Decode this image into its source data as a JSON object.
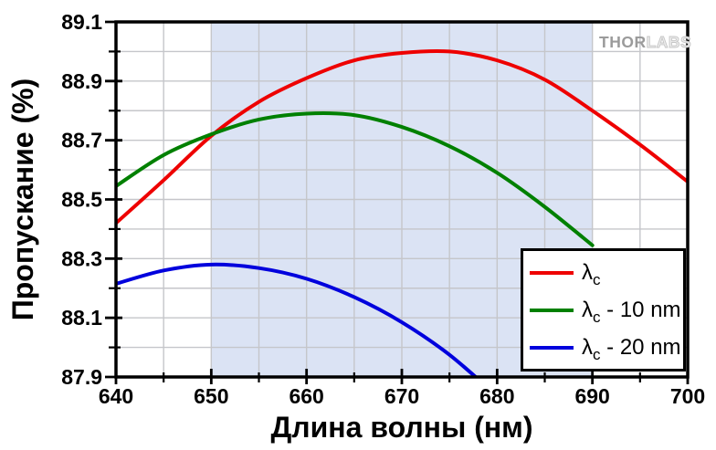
{
  "chart_data": {
    "type": "line",
    "title": "",
    "xlabel": "Длина волны (нм)",
    "ylabel": "Пропускание (%)",
    "xlim": [
      640,
      700
    ],
    "ylim": [
      87.9,
      89.1
    ],
    "x_major_ticks": [
      640,
      650,
      660,
      670,
      680,
      690,
      700
    ],
    "x_minor_ticks": [
      645,
      655,
      665,
      675,
      685,
      695
    ],
    "y_major_ticks": [
      87.9,
      88.1,
      88.3,
      88.5,
      88.7,
      88.9,
      89.1
    ],
    "y_minor_ticks": [
      88.0,
      88.2,
      88.4,
      88.6,
      88.8,
      89.0
    ],
    "grid": {
      "show": true,
      "x_step": 5,
      "y_step": 0.1,
      "color": "#c5c6ca"
    },
    "shaded_band": {
      "x_start": 650,
      "x_end": 690,
      "color": "#dbe3f4"
    },
    "legend_position": "bottom-right",
    "frame_color": "#000000",
    "x": [
      640,
      645,
      650,
      655,
      660,
      665,
      670,
      675,
      680,
      685,
      690,
      695,
      700
    ],
    "series": [
      {
        "name": "λc",
        "color": "#ee0000",
        "values": [
          88.42,
          88.565,
          88.715,
          88.83,
          88.91,
          88.97,
          88.995,
          89.0,
          88.97,
          88.905,
          88.8,
          88.685,
          88.56
        ]
      },
      {
        "name": "λc - 10 nm",
        "color": "#008000",
        "values": [
          88.545,
          88.65,
          88.72,
          88.77,
          88.79,
          88.785,
          88.745,
          88.68,
          88.59,
          88.475,
          88.345,
          null,
          null
        ]
      },
      {
        "name": "λc - 20 nm",
        "color": "#0000dd",
        "values": [
          88.215,
          88.26,
          88.28,
          88.268,
          88.232,
          88.17,
          88.085,
          87.975,
          87.835,
          null,
          null,
          null,
          null
        ]
      }
    ]
  },
  "legend": {
    "entries": [
      {
        "symbol": "λ",
        "sub": "c",
        "suffix": ""
      },
      {
        "symbol": "λ",
        "sub": "c",
        "suffix": " - 10 nm"
      },
      {
        "symbol": "λ",
        "sub": "c",
        "suffix": " - 20 nm"
      }
    ]
  },
  "branding": {
    "solid": "THOR",
    "outline": "LABS"
  }
}
